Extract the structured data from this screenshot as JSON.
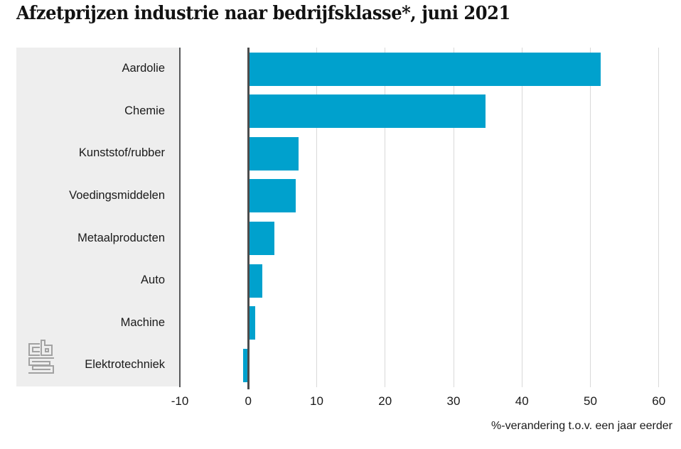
{
  "title": "Afzetprijzen industrie naar bedrijfsklasse*, juni 2021",
  "chart_data": {
    "type": "bar",
    "orientation": "horizontal",
    "title": "Afzetprijzen industrie naar bedrijfsklasse*, juni 2021",
    "categories": [
      "Aardolie",
      "Chemie",
      "Kunststof/rubber",
      "Voedingsmiddelen",
      "Metaalproducten",
      "Auto",
      "Machine",
      "Elektrotechniek"
    ],
    "values": [
      51.5,
      34.7,
      7.4,
      6.9,
      3.8,
      2.0,
      1.0,
      -0.8
    ],
    "xlabel": "%-verandering t.o.v. een jaar eerder",
    "x_ticks": [
      -10,
      0,
      10,
      20,
      30,
      40,
      50,
      60
    ],
    "xlim": [
      -10,
      62
    ],
    "grid": true,
    "legend": false,
    "colors": {
      "bar": "#00a1cd",
      "panel_bg": "#eeeeee",
      "gridline": "#d9d9d9",
      "zero_axis": "#4c4c4c",
      "panel_edge": "#58595b",
      "text": "#1a1a1a",
      "logo": "#a2a2a2"
    }
  },
  "logo": {
    "label": "CBS"
  }
}
